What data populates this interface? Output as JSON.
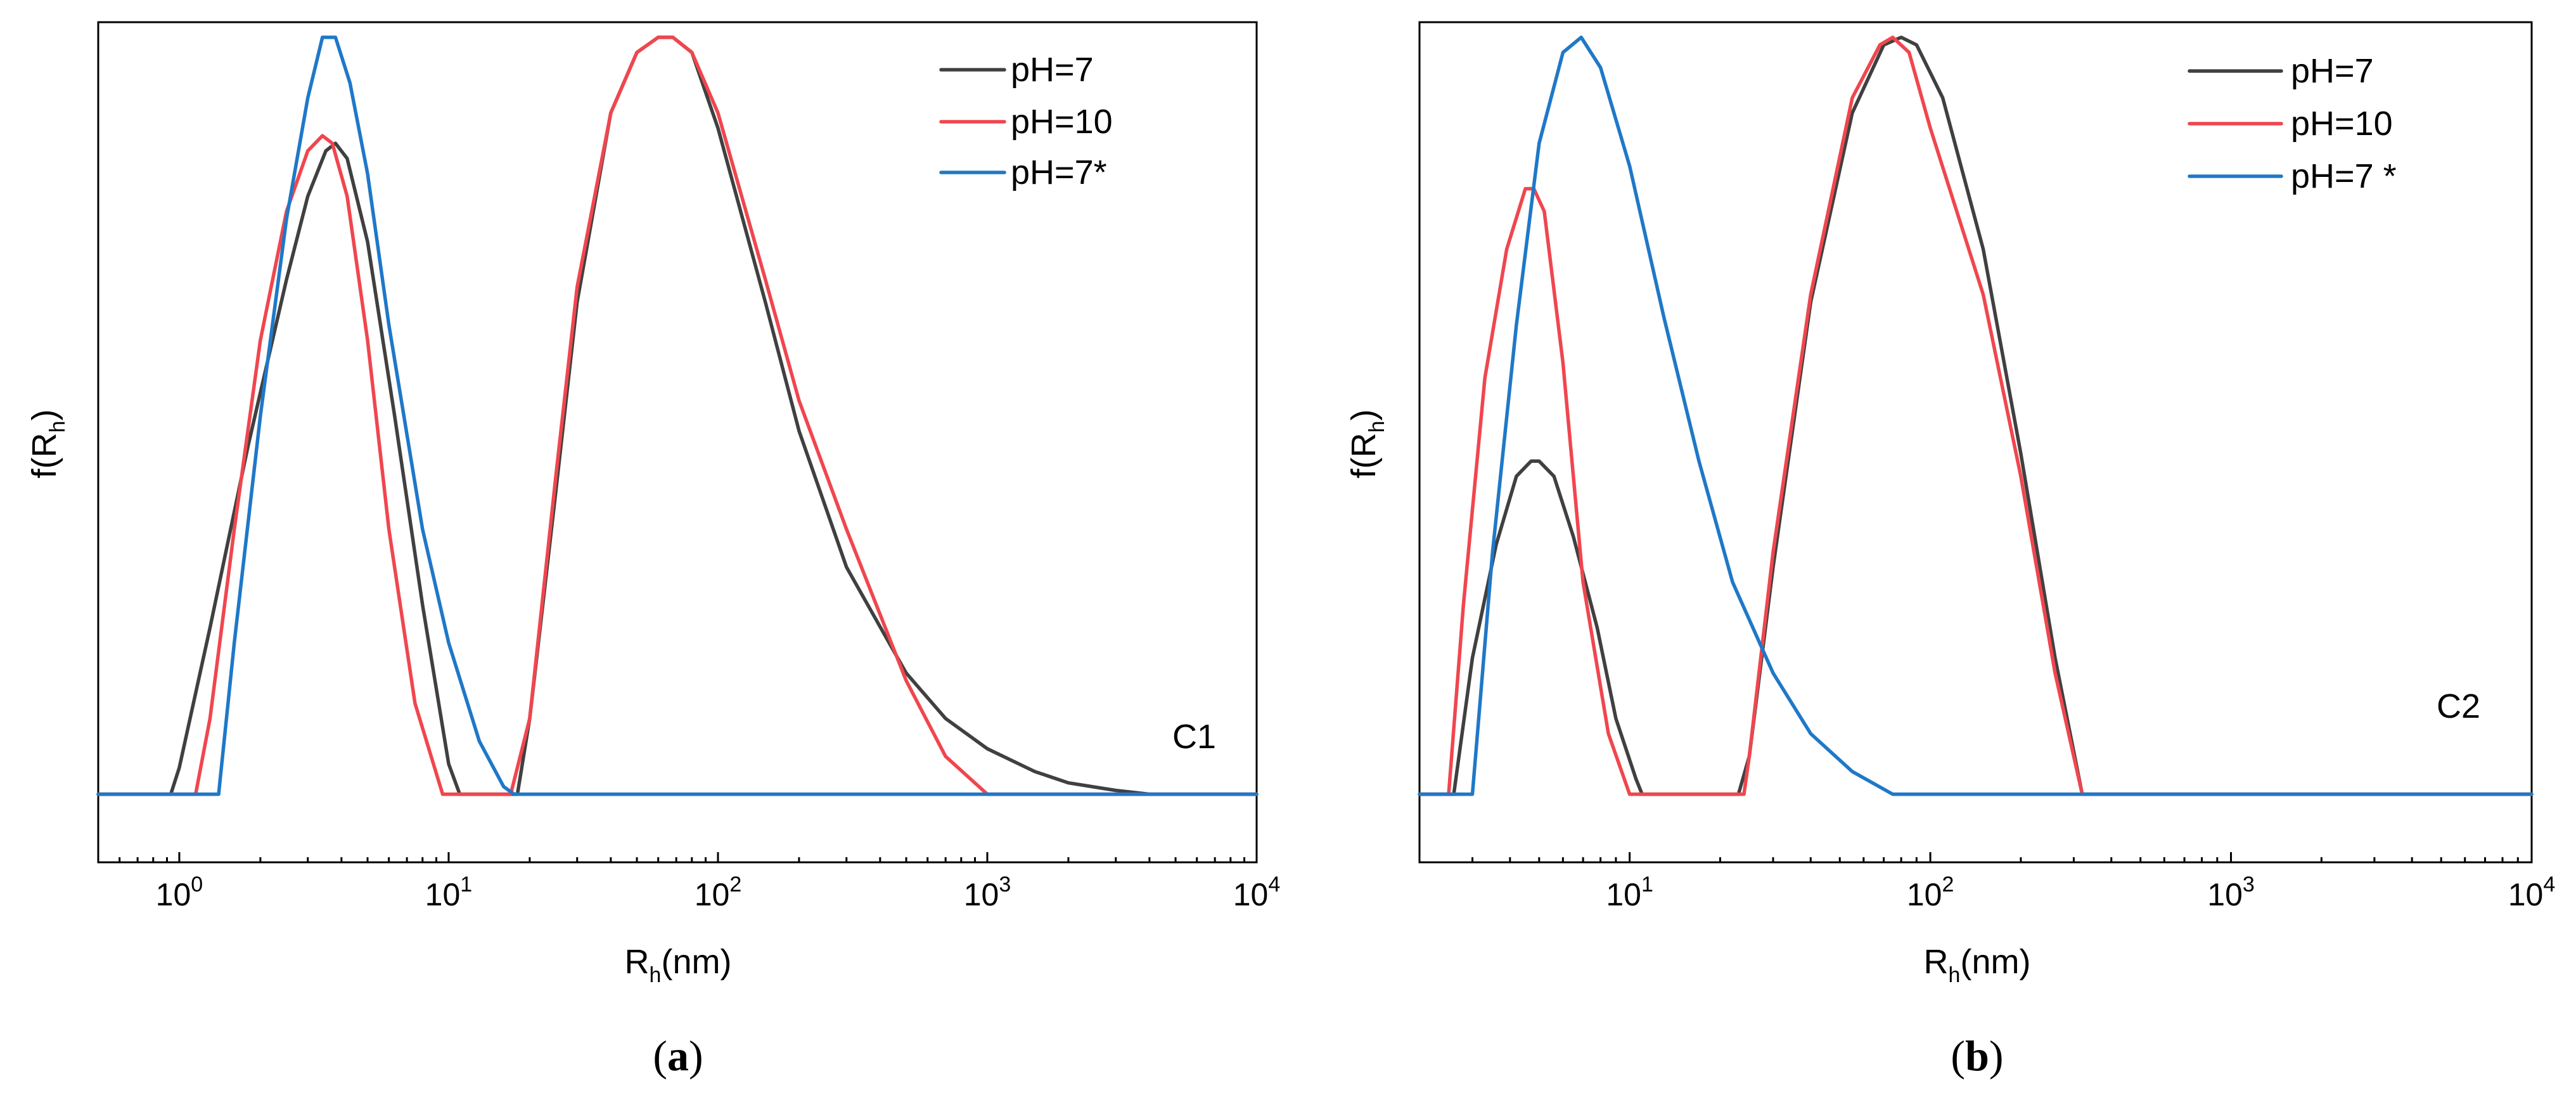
{
  "colors": {
    "pH=7": "#404040",
    "pH=10": "#f0464e",
    "pH=7*": "#1f78c8"
  },
  "chart_data": [
    {
      "id": "a",
      "type": "line",
      "caption_open": "(",
      "caption_letter": "a",
      "caption_close": ")",
      "corner_label": "C1",
      "xlabel_main": "R",
      "xlabel_sub": "h",
      "xlabel_tail": "(nm)",
      "ylabel_main": "f(R",
      "ylabel_sub": "h",
      "ylabel_tail": ")",
      "x_scale": "log",
      "xlim": [
        0.5,
        10000
      ],
      "ylim": [
        -0.09,
        1.02
      ],
      "x_ticks": [
        {
          "value": 1,
          "base": "10",
          "exp": "0"
        },
        {
          "value": 10,
          "base": "10",
          "exp": "1"
        },
        {
          "value": 100,
          "base": "10",
          "exp": "2"
        },
        {
          "value": 1000,
          "base": "10",
          "exp": "3"
        },
        {
          "value": 10000,
          "base": "10",
          "exp": "4"
        }
      ],
      "legend": [
        "pH=7",
        "pH=10",
        "pH=7*"
      ],
      "series": [
        {
          "name": "pH=7",
          "color_key": "pH=7",
          "x": [
            0.5,
            0.93,
            1.0,
            1.3,
            1.8,
            2.5,
            3.0,
            3.5,
            3.8,
            4.2,
            5.0,
            6.3,
            8.0,
            10.0,
            11.0,
            12.0,
            18.0,
            20.0,
            25.0,
            30.0,
            40.0,
            50.0,
            60.0,
            68.0,
            80.0,
            100.0,
            150.0,
            200.0,
            300.0,
            500.0,
            700.0,
            1000.0,
            1500.0,
            2000.0,
            3000.0,
            4000.0,
            10000.0
          ],
          "y": [
            0,
            0,
            0.035,
            0.22,
            0.46,
            0.68,
            0.79,
            0.85,
            0.86,
            0.84,
            0.73,
            0.5,
            0.25,
            0.04,
            0,
            0,
            0,
            0.1,
            0.4,
            0.65,
            0.9,
            0.98,
            1.0,
            1.0,
            0.98,
            0.88,
            0.65,
            0.48,
            0.3,
            0.16,
            0.1,
            0.06,
            0.03,
            0.015,
            0.005,
            0,
            0
          ]
        },
        {
          "name": "pH=10",
          "color_key": "pH=10",
          "x": [
            0.5,
            1.15,
            1.3,
            1.6,
            2.0,
            2.5,
            3.0,
            3.4,
            3.7,
            4.2,
            5.0,
            6.0,
            7.5,
            9.5,
            17.0,
            20.0,
            25.0,
            30.0,
            40.0,
            50.0,
            60.0,
            68.0,
            80.0,
            100.0,
            150.0,
            200.0,
            300.0,
            500.0,
            700.0,
            1000.0,
            10000.0
          ],
          "y": [
            0,
            0,
            0.1,
            0.35,
            0.6,
            0.77,
            0.85,
            0.87,
            0.86,
            0.79,
            0.6,
            0.35,
            0.12,
            0,
            0,
            0.1,
            0.42,
            0.67,
            0.9,
            0.98,
            1.0,
            1.0,
            0.98,
            0.9,
            0.68,
            0.52,
            0.35,
            0.15,
            0.05,
            0,
            0
          ]
        },
        {
          "name": "pH=7*",
          "color_key": "pH=7*",
          "x": [
            0.5,
            1.4,
            1.6,
            2.0,
            2.5,
            3.0,
            3.4,
            3.8,
            4.3,
            5.0,
            6.0,
            8.0,
            10.0,
            13.0,
            16.0,
            17.5,
            10000.0
          ],
          "y": [
            0,
            0,
            0.2,
            0.5,
            0.76,
            0.92,
            1.0,
            1.0,
            0.94,
            0.82,
            0.62,
            0.35,
            0.2,
            0.07,
            0.01,
            0,
            0
          ]
        }
      ]
    },
    {
      "id": "b",
      "type": "line",
      "caption_open": "(",
      "caption_letter": "b",
      "caption_close": ")",
      "corner_label": "C2",
      "xlabel_main": "R",
      "xlabel_sub": "h",
      "xlabel_tail": "(nm)",
      "ylabel_main": "f(R",
      "ylabel_sub": "h",
      "ylabel_tail": ")",
      "x_scale": "log",
      "xlim": [
        2.0,
        10000
      ],
      "ylim": [
        -0.09,
        1.02
      ],
      "x_ticks": [
        {
          "value": 10,
          "base": "10",
          "exp": "1"
        },
        {
          "value": 100,
          "base": "10",
          "exp": "2"
        },
        {
          "value": 1000,
          "base": "10",
          "exp": "3"
        },
        {
          "value": 10000,
          "base": "10",
          "exp": "4"
        }
      ],
      "legend": [
        "pH=7",
        "pH=10",
        "pH=7 *"
      ],
      "series": [
        {
          "name": "pH=7",
          "color_key": "pH=7",
          "x": [
            2.0,
            2.6,
            3.0,
            3.6,
            4.2,
            4.7,
            5.0,
            5.6,
            6.5,
            7.8,
            9.0,
            10.5,
            11.0,
            23.0,
            25.0,
            30.0,
            40.0,
            55.0,
            70.0,
            80.0,
            90.0,
            110.0,
            150.0,
            200.0,
            260.0,
            320.0,
            10000.0
          ],
          "y": [
            0,
            0,
            0.18,
            0.33,
            0.42,
            0.44,
            0.44,
            0.42,
            0.34,
            0.22,
            0.1,
            0.02,
            0,
            0,
            0.05,
            0.3,
            0.65,
            0.9,
            0.99,
            1.0,
            0.99,
            0.92,
            0.72,
            0.45,
            0.18,
            0,
            0
          ]
        },
        {
          "name": "pH=10",
          "color_key": "pH=10",
          "x": [
            2.0,
            2.5,
            2.8,
            3.3,
            3.9,
            4.5,
            4.8,
            5.2,
            6.0,
            7.0,
            8.5,
            10.0,
            24.0,
            25.0,
            30.0,
            40.0,
            55.0,
            68.0,
            75.0,
            85.0,
            100.0,
            150.0,
            200.0,
            260.0,
            320.0,
            10000.0
          ],
          "y": [
            0,
            0,
            0.25,
            0.55,
            0.72,
            0.8,
            0.8,
            0.77,
            0.57,
            0.28,
            0.08,
            0,
            0,
            0.05,
            0.32,
            0.66,
            0.92,
            0.99,
            1.0,
            0.98,
            0.88,
            0.66,
            0.42,
            0.16,
            0,
            0
          ]
        },
        {
          "name": "pH=7 *",
          "color_key": "pH=7*",
          "x": [
            2.0,
            3.0,
            3.5,
            4.2,
            5.0,
            6.0,
            6.9,
            8.0,
            10.0,
            13.0,
            17.0,
            22.0,
            30.0,
            40.0,
            55.0,
            75.0,
            10000.0
          ],
          "y": [
            0,
            0,
            0.32,
            0.62,
            0.86,
            0.98,
            1.0,
            0.96,
            0.83,
            0.63,
            0.44,
            0.28,
            0.16,
            0.08,
            0.03,
            0,
            0
          ]
        }
      ]
    }
  ]
}
